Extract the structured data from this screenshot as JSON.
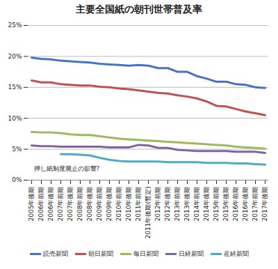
{
  "chart_data": {
    "type": "line",
    "title": "主要全国紙の朝刊世帯普及率",
    "annotation": "押し紙制度廃止の影響?",
    "categories": [
      "2005年後期",
      "2006年前期",
      "2006年後期",
      "2007年前期",
      "2007年後期",
      "2008年前期",
      "2008年後期",
      "2009年前期",
      "2009年後期",
      "2010年前期",
      "2010年後期",
      "2011年前期",
      "2011年後期(暫定)",
      "2012年前期",
      "2012年後期",
      "2013年前期",
      "2013年後期",
      "2014年前期",
      "2014年後期",
      "2015年前期",
      "2015年後期",
      "2016年前期",
      "2016年後期",
      "2017年前期",
      "2017年後期"
    ],
    "series": [
      {
        "name": "読売新聞",
        "color": "#4472c4",
        "values": [
          19.8,
          19.6,
          19.5,
          19.3,
          19.2,
          19.1,
          19.0,
          18.8,
          18.7,
          18.6,
          18.5,
          18.6,
          18.5,
          18.1,
          18.1,
          17.5,
          17.5,
          16.8,
          16.4,
          15.9,
          15.9,
          15.5,
          15.4,
          15.0,
          14.9
        ]
      },
      {
        "name": "朝日新聞",
        "color": "#c0504d",
        "values": [
          16.1,
          15.8,
          15.8,
          15.5,
          15.4,
          15.3,
          15.3,
          15.1,
          15.0,
          14.8,
          14.7,
          14.5,
          14.3,
          14.1,
          14.0,
          13.7,
          13.5,
          13.2,
          12.7,
          12.0,
          11.9,
          11.5,
          11.1,
          10.8,
          10.5
        ]
      },
      {
        "name": "毎日新聞",
        "color": "#9bbb59",
        "values": [
          7.8,
          7.7,
          7.7,
          7.6,
          7.4,
          7.3,
          7.3,
          7.1,
          6.9,
          6.7,
          6.6,
          6.5,
          6.4,
          6.3,
          6.2,
          6.1,
          6.0,
          5.9,
          5.8,
          5.7,
          5.6,
          5.4,
          5.3,
          5.2,
          5.1
        ]
      },
      {
        "name": "日経新聞",
        "color": "#8064a2",
        "values": [
          5.6,
          5.5,
          5.5,
          5.4,
          5.4,
          5.4,
          5.4,
          5.4,
          5.3,
          5.3,
          5.3,
          5.7,
          5.6,
          5.2,
          5.2,
          4.9,
          4.8,
          4.7,
          4.7,
          4.7,
          4.7,
          4.6,
          4.6,
          4.6,
          4.4
        ]
      },
      {
        "name": "産経新聞",
        "color": "#4bacc6",
        "values": [
          null,
          null,
          null,
          4.2,
          4.2,
          4.1,
          4.0,
          3.6,
          3.3,
          3.1,
          3.0,
          3.0,
          3.0,
          3.0,
          2.9,
          2.9,
          2.9,
          2.9,
          2.8,
          2.8,
          2.8,
          2.7,
          2.7,
          2.6,
          2.5
        ]
      }
    ],
    "ylim": [
      0,
      25
    ],
    "yticks": [
      {
        "value": 0,
        "label": "0%"
      },
      {
        "value": 5,
        "label": "5%"
      },
      {
        "value": 10,
        "label": "10%"
      },
      {
        "value": 15,
        "label": "15%"
      },
      {
        "value": 20,
        "label": "20%"
      },
      {
        "value": 25,
        "label": "25%"
      }
    ],
    "grid": true,
    "legend": "bottom"
  }
}
